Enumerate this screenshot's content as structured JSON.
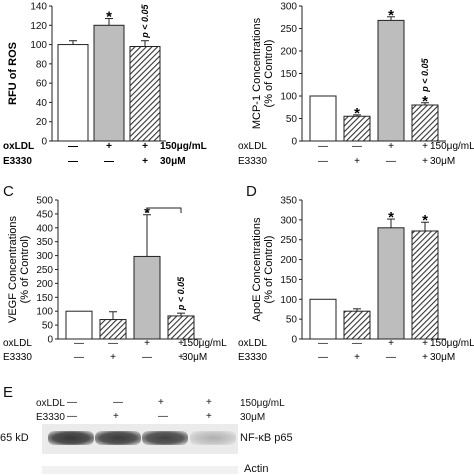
{
  "chart_data": [
    {
      "panel": "",
      "type": "bar",
      "ylabel": "RFU of ROS",
      "ylim": [
        0,
        140
      ],
      "yticks": [
        0,
        20,
        40,
        60,
        80,
        100,
        120,
        140
      ],
      "bars": [
        {
          "value": 100,
          "error": 4,
          "fill": "white",
          "star": ""
        },
        {
          "value": 120,
          "error": 7,
          "fill": "gray",
          "star": "*"
        },
        {
          "value": 98,
          "error": 6,
          "fill": "hatch",
          "star": "",
          "annotation": "p < 0.05"
        }
      ],
      "conditions": [
        {
          "name": "oxLDL",
          "marks": [
            "—",
            "+",
            "+"
          ],
          "unit": "150μg/mL"
        },
        {
          "name": "E3330",
          "marks": [
            "—",
            "—",
            "+"
          ],
          "unit": "30μM"
        }
      ]
    },
    {
      "panel": "",
      "type": "bar",
      "ylabel": "MCP-1 Concentrations\n(% of Control)",
      "ylim": [
        0,
        300
      ],
      "yticks": [
        0,
        50,
        100,
        150,
        200,
        250,
        300
      ],
      "bars": [
        {
          "value": 100,
          "error": 0,
          "fill": "white",
          "star": ""
        },
        {
          "value": 55,
          "error": 3,
          "fill": "hatch",
          "star": "*"
        },
        {
          "value": 268,
          "error": 8,
          "fill": "gray",
          "star": "*"
        },
        {
          "value": 80,
          "error": 5,
          "fill": "hatch",
          "star": "*",
          "annotation": "p < 0.05"
        }
      ],
      "conditions": [
        {
          "name": "oxLDL",
          "marks": [
            "—",
            "—",
            "+",
            "+"
          ],
          "unit": "150μg/mL"
        },
        {
          "name": "E3330",
          "marks": [
            "—",
            "+",
            "—",
            "+"
          ],
          "unit": "30μM"
        }
      ]
    },
    {
      "panel": "C",
      "type": "bar",
      "ylabel": "VEGF Concentrations\n(% of Control)",
      "ylim": [
        0,
        500
      ],
      "yticks": [
        0,
        50,
        100,
        150,
        200,
        250,
        300,
        350,
        400,
        450,
        500
      ],
      "bars": [
        {
          "value": 100,
          "error": 0,
          "fill": "white",
          "star": ""
        },
        {
          "value": 70,
          "error": 28,
          "fill": "hatch",
          "star": ""
        },
        {
          "value": 297,
          "error": 150,
          "fill": "gray",
          "star": "*"
        },
        {
          "value": 83,
          "error": 10,
          "fill": "hatch",
          "star": "",
          "annotation": "p < 0.05"
        }
      ],
      "bracket": [
        2,
        3
      ],
      "conditions": [
        {
          "name": "oxLDL",
          "marks": [
            "—",
            "—",
            "+",
            "+"
          ],
          "unit": "150μg/mL"
        },
        {
          "name": "E3330",
          "marks": [
            "—",
            "+",
            "—",
            "+"
          ],
          "unit": "30μM"
        }
      ]
    },
    {
      "panel": "D",
      "type": "bar",
      "ylabel": "ApoE Concentrations\n(% of Control)",
      "ylim": [
        0,
        350
      ],
      "yticks": [
        0,
        50,
        100,
        150,
        200,
        250,
        300,
        350
      ],
      "bars": [
        {
          "value": 100,
          "error": 0,
          "fill": "white",
          "star": ""
        },
        {
          "value": 70,
          "error": 6,
          "fill": "hatch",
          "star": ""
        },
        {
          "value": 280,
          "error": 22,
          "fill": "gray",
          "star": "*"
        },
        {
          "value": 272,
          "error": 22,
          "fill": "hatch",
          "star": "*"
        }
      ],
      "conditions": [
        {
          "name": "oxLDL",
          "marks": [
            "—",
            "—",
            "+",
            "+"
          ],
          "unit": "150μg/mL"
        },
        {
          "name": "E3330",
          "marks": [
            "—",
            "+",
            "—",
            "+"
          ],
          "unit": "30μM"
        }
      ]
    }
  ],
  "blot": {
    "panel": "E",
    "conditions": [
      {
        "name": "oxLDL",
        "marks": [
          "—",
          "—",
          "+",
          "+"
        ],
        "unit": "150μg/mL"
      },
      {
        "name": "E3330",
        "marks": [
          "—",
          "+",
          "—",
          "+"
        ],
        "unit": "30μM"
      }
    ],
    "size_label": "65 kD",
    "band_label": "NF-κB p65",
    "band_intensity": [
      0.9,
      0.88,
      0.85,
      0.3
    ],
    "actin_label": "Actin"
  },
  "colors": {
    "gray": "#bdbdbd",
    "hatch": "#444444",
    "white": "#ffffff",
    "axis": "#222222"
  }
}
